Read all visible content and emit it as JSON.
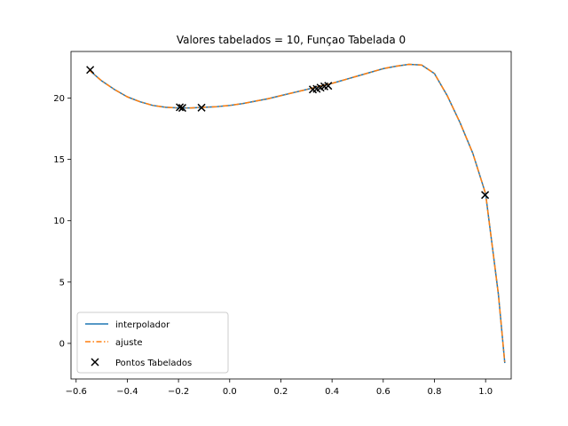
{
  "chart_data": {
    "type": "line",
    "title": "Valores tabelados = 10, Funçao Tabelada 0",
    "xlabel": "",
    "ylabel": "",
    "xlim": [
      -0.62,
      1.1
    ],
    "ylim": [
      -2.9,
      23.8
    ],
    "x_ticks": [
      -0.6,
      -0.4,
      -0.2,
      0.0,
      0.2,
      0.4,
      0.6,
      0.8,
      1.0
    ],
    "x_tick_labels": [
      "−0.6",
      "−0.4",
      "−0.2",
      "0.0",
      "0.2",
      "0.4",
      "0.6",
      "0.8",
      "1.0"
    ],
    "y_ticks": [
      0,
      5,
      10,
      15,
      20
    ],
    "y_tick_labels": [
      "0",
      "5",
      "10",
      "15",
      "20"
    ],
    "grid": false,
    "legend_position": "lower-left",
    "series": [
      {
        "name": "interpolador",
        "style": "solid",
        "color": "#1f77b4",
        "x": [
          -0.55,
          -0.5,
          -0.45,
          -0.4,
          -0.35,
          -0.3,
          -0.25,
          -0.2,
          -0.15,
          -0.1,
          -0.05,
          0.0,
          0.05,
          0.1,
          0.15,
          0.2,
          0.25,
          0.3,
          0.35,
          0.4,
          0.45,
          0.5,
          0.55,
          0.6,
          0.65,
          0.7,
          0.75,
          0.8,
          0.85,
          0.9,
          0.95,
          1.0,
          1.05,
          1.075
        ],
        "y": [
          22.3,
          21.4,
          20.7,
          20.1,
          19.7,
          19.4,
          19.25,
          19.2,
          19.2,
          19.25,
          19.3,
          19.4,
          19.55,
          19.75,
          19.95,
          20.2,
          20.45,
          20.7,
          20.95,
          21.2,
          21.5,
          21.8,
          22.1,
          22.4,
          22.6,
          22.75,
          22.7,
          22.0,
          20.2,
          18.0,
          15.5,
          12.2,
          4.0,
          -1.6
        ]
      },
      {
        "name": "ajuste",
        "style": "dashdot",
        "color": "#ff7f0e",
        "x": [
          -0.55,
          -0.5,
          -0.45,
          -0.4,
          -0.35,
          -0.3,
          -0.25,
          -0.2,
          -0.15,
          -0.1,
          -0.05,
          0.0,
          0.05,
          0.1,
          0.15,
          0.2,
          0.25,
          0.3,
          0.35,
          0.4,
          0.45,
          0.5,
          0.55,
          0.6,
          0.65,
          0.7,
          0.75,
          0.8,
          0.85,
          0.9,
          0.95,
          1.0,
          1.05,
          1.075
        ],
        "y": [
          22.3,
          21.4,
          20.7,
          20.1,
          19.7,
          19.4,
          19.25,
          19.2,
          19.2,
          19.25,
          19.3,
          19.4,
          19.55,
          19.75,
          19.95,
          20.2,
          20.45,
          20.7,
          20.95,
          21.2,
          21.5,
          21.8,
          22.1,
          22.4,
          22.6,
          22.75,
          22.7,
          22.0,
          20.2,
          18.0,
          15.5,
          12.2,
          4.0,
          -1.6
        ]
      },
      {
        "name": "Pontos Tabelados",
        "style": "marker-x",
        "color": "#000000",
        "x": [
          -0.545,
          -0.195,
          -0.185,
          -0.11,
          0.325,
          0.34,
          0.355,
          0.37,
          0.385,
          0.998
        ],
        "y": [
          22.3,
          19.25,
          19.2,
          19.22,
          20.7,
          20.75,
          20.85,
          20.95,
          21.0,
          12.1
        ]
      }
    ]
  }
}
